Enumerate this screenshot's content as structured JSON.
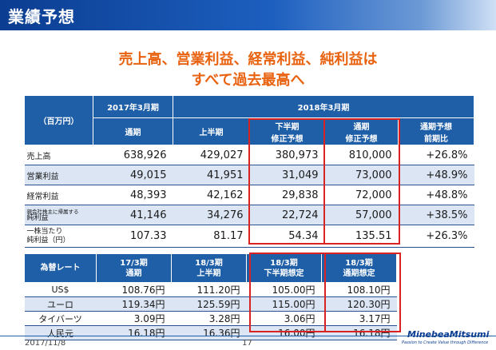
{
  "header": {
    "title": "業績予想"
  },
  "headline": {
    "line1": "売上高、営業利益、経常利益、純利益は",
    "line2": "すべて過去最高へ"
  },
  "main_table": {
    "unit": "（百万円）",
    "fy2017": "2017年3月期",
    "fy2018": "2018年3月期",
    "col_full": "通期",
    "col_h1": "上半期",
    "col_h2_a": "下半期",
    "col_h2_b": "修正予想",
    "col_fc_a": "通期",
    "col_fc_b": "修正予想",
    "col_yoy_a": "通期予想",
    "col_yoy_b": "前期比",
    "rows": [
      {
        "label": "売上高",
        "v2017": "638,926",
        "h1": "429,027",
        "h2": "380,973",
        "fy": "810,000",
        "yoy": "+26.8%"
      },
      {
        "label": "営業利益",
        "v2017": "49,015",
        "h1": "41,951",
        "h2": "31,049",
        "fy": "73,000",
        "yoy": "+48.9%"
      },
      {
        "label": "経常利益",
        "v2017": "48,393",
        "h1": "42,162",
        "h2": "29,838",
        "fy": "72,000",
        "yoy": "+48.8%"
      },
      {
        "label_a": "親会社株主に帰属する",
        "label_b": "純利益",
        "v2017": "41,146",
        "h1": "34,276",
        "h2": "22,724",
        "fy": "57,000",
        "yoy": "+38.5%"
      },
      {
        "label_a": "一株当たり",
        "label_b": "純利益（円）",
        "v2017": "107.33",
        "h1": "81.17",
        "h2": "54.34",
        "fy": "135.51",
        "yoy": "+26.3%"
      }
    ]
  },
  "fx_table": {
    "head": "為替レート",
    "c1a": "17/3期",
    "c1b": "通期",
    "c2a": "18/3期",
    "c2b": "上半期",
    "c3a": "18/3期",
    "c3b": "下半期想定",
    "c4a": "18/3期",
    "c4b": "通期想定",
    "rows": [
      {
        "cur": "US$",
        "a": "108.76円",
        "b": "111.20円",
        "c": "105.00円",
        "d": "108.10円"
      },
      {
        "cur": "ユーロ",
        "a": "119.34円",
        "b": "125.59円",
        "c": "115.00円",
        "d": "120.30円"
      },
      {
        "cur": "タイバーツ",
        "a": "3.09円",
        "b": "3.28円",
        "c": "3.06円",
        "d": "3.17円"
      },
      {
        "cur": "人民元",
        "a": "16.18円",
        "b": "16.36円",
        "c": "16.00円",
        "d": "16.18円"
      }
    ]
  },
  "footer": {
    "date": "2017/11/8",
    "page": "17",
    "logo": "MinebeaMitsumi",
    "tagline": "Passion to Create Value through Difference"
  }
}
